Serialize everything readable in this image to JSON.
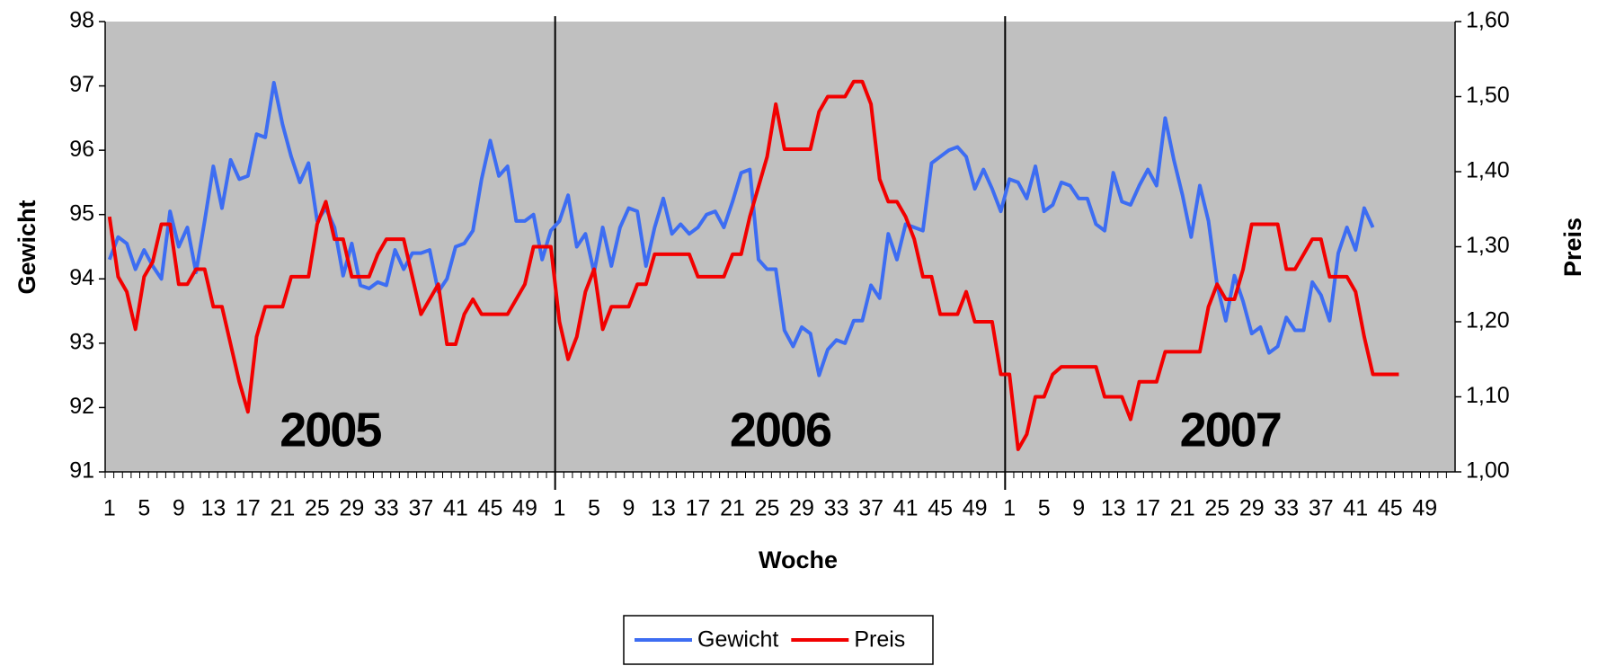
{
  "chart_data": {
    "type": "line",
    "x_label": "Woche",
    "y_label": "Gewicht",
    "y2_label": "Preis",
    "groups": [
      {
        "label": "2005",
        "categories": [
          "1",
          null,
          null,
          null,
          "5",
          null,
          null,
          null,
          "9",
          null,
          null,
          null,
          "13",
          null,
          null,
          null,
          "17",
          null,
          null,
          null,
          "21",
          null,
          null,
          null,
          "25",
          null,
          null,
          null,
          "29",
          null,
          null,
          null,
          "33",
          null,
          null,
          null,
          "37",
          null,
          null,
          null,
          "41",
          null,
          null,
          null,
          "45",
          null,
          null,
          null,
          "49",
          null,
          null,
          null
        ]
      },
      {
        "label": "2006",
        "categories": [
          "1",
          null,
          null,
          null,
          "5",
          null,
          null,
          null,
          "9",
          null,
          null,
          null,
          "13",
          null,
          null,
          null,
          "17",
          null,
          null,
          null,
          "21",
          null,
          null,
          null,
          "25",
          null,
          null,
          null,
          "29",
          null,
          null,
          null,
          "33",
          null,
          null,
          null,
          "37",
          null,
          null,
          null,
          "41",
          null,
          null,
          null,
          "45",
          null,
          null,
          null,
          "49",
          null,
          null,
          null
        ]
      },
      {
        "label": "2007",
        "categories": [
          "1",
          null,
          null,
          null,
          "5",
          null,
          null,
          null,
          "9",
          null,
          null,
          null,
          "13",
          null,
          null,
          null,
          "17",
          null,
          null,
          null,
          "21",
          null,
          null,
          null,
          "25",
          null,
          null,
          null,
          "29",
          null,
          null,
          null,
          "33",
          null,
          null,
          null,
          "37",
          null,
          null,
          null,
          "41",
          null,
          null,
          null,
          "45",
          null,
          null,
          null,
          "49",
          null,
          null,
          null
        ]
      }
    ],
    "series": [
      {
        "name": "Gewicht",
        "color": "#3d6df2",
        "axis": "y",
        "values": [
          94.3,
          94.65,
          94.55,
          94.15,
          94.45,
          94.2,
          94.0,
          95.05,
          94.5,
          94.8,
          94.1,
          94.9,
          95.75,
          95.1,
          95.85,
          95.55,
          95.6,
          96.25,
          96.2,
          97.05,
          96.4,
          95.9,
          95.5,
          95.8,
          94.9,
          95.1,
          94.8,
          94.05,
          94.55,
          93.9,
          93.85,
          93.95,
          93.9,
          94.45,
          94.15,
          94.4,
          94.4,
          94.45,
          93.8,
          94.0,
          94.5,
          94.55,
          94.75,
          95.55,
          96.15,
          95.6,
          95.75,
          94.9,
          94.9,
          95.0,
          94.3,
          94.75,
          94.9,
          95.3,
          94.5,
          94.7,
          94.1,
          94.8,
          94.2,
          94.8,
          95.1,
          95.05,
          94.2,
          94.8,
          95.25,
          94.7,
          94.85,
          94.7,
          94.8,
          95.0,
          95.05,
          94.8,
          95.2,
          95.65,
          95.7,
          94.3,
          94.15,
          94.15,
          93.2,
          92.95,
          93.25,
          93.15,
          92.5,
          92.9,
          93.05,
          93.0,
          93.35,
          93.35,
          93.9,
          93.7,
          94.7,
          94.3,
          94.85,
          94.8,
          94.75,
          95.8,
          95.9,
          96.0,
          96.05,
          95.9,
          95.4,
          95.7,
          95.4,
          95.05,
          95.55,
          95.5,
          95.25,
          95.75,
          95.05,
          95.15,
          95.5,
          95.45,
          95.25,
          95.25,
          94.85,
          94.75,
          95.65,
          95.2,
          95.15,
          95.45,
          95.7,
          95.45,
          96.5,
          95.85,
          95.3,
          94.65,
          95.45,
          94.9,
          93.9,
          93.35,
          94.05,
          93.65,
          93.15,
          93.25,
          92.85,
          92.95,
          93.4,
          93.2,
          93.2,
          93.95,
          93.75,
          93.35,
          94.4,
          94.8,
          94.45,
          95.1,
          94.8,
          null,
          null,
          null,
          null,
          null,
          null,
          null,
          null,
          null
        ]
      },
      {
        "name": "Preis",
        "color": "#f20000",
        "axis": "y2",
        "values": [
          1.34,
          1.26,
          1.24,
          1.19,
          1.26,
          1.28,
          1.33,
          1.33,
          1.25,
          1.25,
          1.27,
          1.27,
          1.22,
          1.22,
          1.17,
          1.12,
          1.08,
          1.18,
          1.22,
          1.22,
          1.22,
          1.26,
          1.26,
          1.26,
          1.33,
          1.36,
          1.31,
          1.31,
          1.26,
          1.26,
          1.26,
          1.29,
          1.31,
          1.31,
          1.31,
          1.26,
          1.21,
          1.23,
          1.25,
          1.17,
          1.17,
          1.21,
          1.23,
          1.21,
          1.21,
          1.21,
          1.21,
          1.23,
          1.25,
          1.3,
          1.3,
          1.3,
          1.2,
          1.15,
          1.18,
          1.24,
          1.27,
          1.19,
          1.22,
          1.22,
          1.22,
          1.25,
          1.25,
          1.29,
          1.29,
          1.29,
          1.29,
          1.29,
          1.26,
          1.26,
          1.26,
          1.26,
          1.29,
          1.29,
          1.34,
          1.38,
          1.42,
          1.49,
          1.43,
          1.43,
          1.43,
          1.43,
          1.48,
          1.5,
          1.5,
          1.5,
          1.52,
          1.52,
          1.49,
          1.39,
          1.36,
          1.36,
          1.34,
          1.31,
          1.26,
          1.26,
          1.21,
          1.21,
          1.21,
          1.24,
          1.2,
          1.2,
          1.2,
          1.13,
          1.13,
          1.03,
          1.05,
          1.1,
          1.1,
          1.13,
          1.14,
          1.14,
          1.14,
          1.14,
          1.14,
          1.1,
          1.1,
          1.1,
          1.07,
          1.12,
          1.12,
          1.12,
          1.16,
          1.16,
          1.16,
          1.16,
          1.16,
          1.22,
          1.25,
          1.23,
          1.23,
          1.27,
          1.33,
          1.33,
          1.33,
          1.33,
          1.27,
          1.27,
          1.29,
          1.31,
          1.31,
          1.26,
          1.26,
          1.26,
          1.24,
          1.18,
          1.13,
          1.13,
          1.13,
          1.13,
          null,
          null,
          null,
          null,
          null,
          null
        ]
      }
    ],
    "ylim": [
      91,
      98
    ],
    "yticks": [
      91,
      92,
      93,
      94,
      95,
      96,
      97,
      98
    ],
    "y2lim": [
      1.0,
      1.6
    ],
    "y2ticks": [
      {
        "value": 1.0,
        "label": "1,00"
      },
      {
        "value": 1.1,
        "label": "1,10"
      },
      {
        "value": 1.2,
        "label": "1,20"
      },
      {
        "value": 1.3,
        "label": "1,30"
      },
      {
        "value": 1.4,
        "label": "1,40"
      },
      {
        "value": 1.5,
        "label": "1,50"
      },
      {
        "value": 1.6,
        "label": "1,60"
      }
    ],
    "plot_background": "#c0c0c0",
    "legend": "bottom"
  }
}
